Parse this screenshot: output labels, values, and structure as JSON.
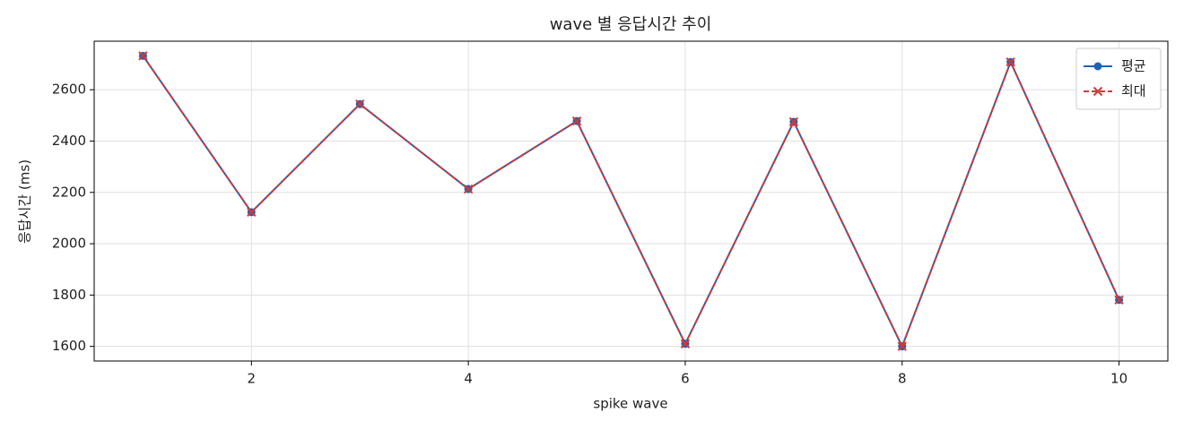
{
  "chart_data": {
    "type": "line",
    "title": "wave 별 응답시간 추이",
    "xlabel": "spike wave",
    "ylabel": "응답시간 (ms)",
    "x": [
      1,
      2,
      3,
      4,
      5,
      6,
      7,
      8,
      9,
      10
    ],
    "series": [
      {
        "name": "평균",
        "color": "#1f63b4",
        "marker": "o",
        "dash": false,
        "values": [
          2732,
          2123,
          2544,
          2213,
          2478,
          1610,
          2475,
          1600,
          2708,
          1781
        ]
      },
      {
        "name": "최대",
        "color": "#d03a3a",
        "marker": "x",
        "dash": true,
        "values": [
          2732,
          2123,
          2544,
          2213,
          2478,
          1610,
          2475,
          1600,
          2708,
          1781
        ]
      }
    ],
    "xlim": [
      0.55,
      10.45
    ],
    "xticks": [
      2,
      4,
      6,
      8,
      10
    ],
    "ylim": [
      1543,
      2789
    ],
    "yticks": [
      1600,
      1800,
      2000,
      2200,
      2400,
      2600
    ],
    "grid": true,
    "legend": "upper right"
  }
}
